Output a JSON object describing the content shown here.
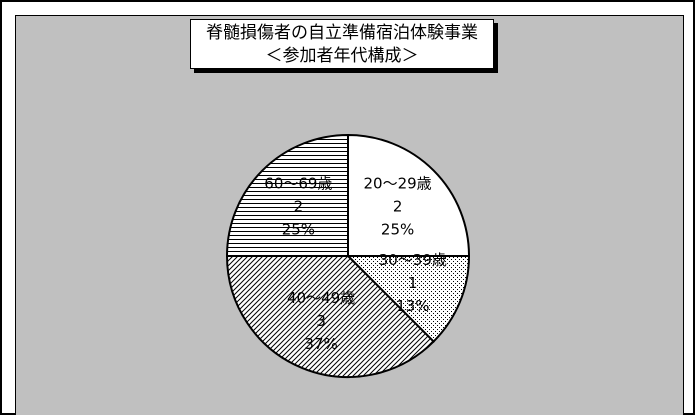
{
  "chart_data": {
    "type": "pie",
    "title": "脊髄損傷者の自立準備宿泊体験事業",
    "subtitle": "＜参加者年代構成＞",
    "categories": [
      "20～29歳",
      "30～39歳",
      "40～49歳",
      "60～69歳"
    ],
    "values": [
      2,
      1,
      3,
      2
    ],
    "percent_labels": [
      "25%",
      "13%",
      "37%",
      "25%"
    ],
    "fills": [
      "white",
      "dots",
      "diagonal-hatch",
      "horizontal-lines"
    ],
    "start_angle_deg": 0,
    "direction": "clockwise",
    "legend": "none"
  },
  "colors": {
    "plot_background": "#c0c0c0",
    "slice_base": "#ffffff",
    "outline": "#000000"
  }
}
